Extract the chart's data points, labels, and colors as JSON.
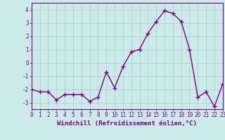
{
  "x": [
    0,
    1,
    2,
    3,
    4,
    5,
    6,
    7,
    8,
    9,
    10,
    11,
    12,
    13,
    14,
    15,
    16,
    17,
    18,
    19,
    20,
    21,
    22,
    23
  ],
  "y": [
    -2.0,
    -2.2,
    -2.2,
    -2.8,
    -2.4,
    -2.4,
    -2.4,
    -2.9,
    -2.6,
    -0.7,
    -1.9,
    -0.3,
    0.8,
    1.0,
    2.2,
    3.1,
    3.9,
    3.7,
    3.1,
    1.0,
    -2.6,
    -2.2,
    -3.3,
    -1.6
  ],
  "line_color": "#800080",
  "marker": "+",
  "marker_size": 4,
  "marker_edge_width": 1.0,
  "bg_color": "#cceaea",
  "grid_color": "#aacccc",
  "xlabel": "Windchill (Refroidissement éolien,°C)",
  "xlim_min": 0,
  "xlim_max": 23,
  "ylim_min": -3.5,
  "ylim_max": 4.5,
  "yticks": [
    -3,
    -2,
    -1,
    0,
    1,
    2,
    3,
    4
  ],
  "xticks": [
    0,
    1,
    2,
    3,
    4,
    5,
    6,
    7,
    8,
    9,
    10,
    11,
    12,
    13,
    14,
    15,
    16,
    17,
    18,
    19,
    20,
    21,
    22,
    23
  ],
  "tick_fontsize": 5.5,
  "xlabel_fontsize": 6.5,
  "line_width": 1.0,
  "spine_color": "#800080"
}
